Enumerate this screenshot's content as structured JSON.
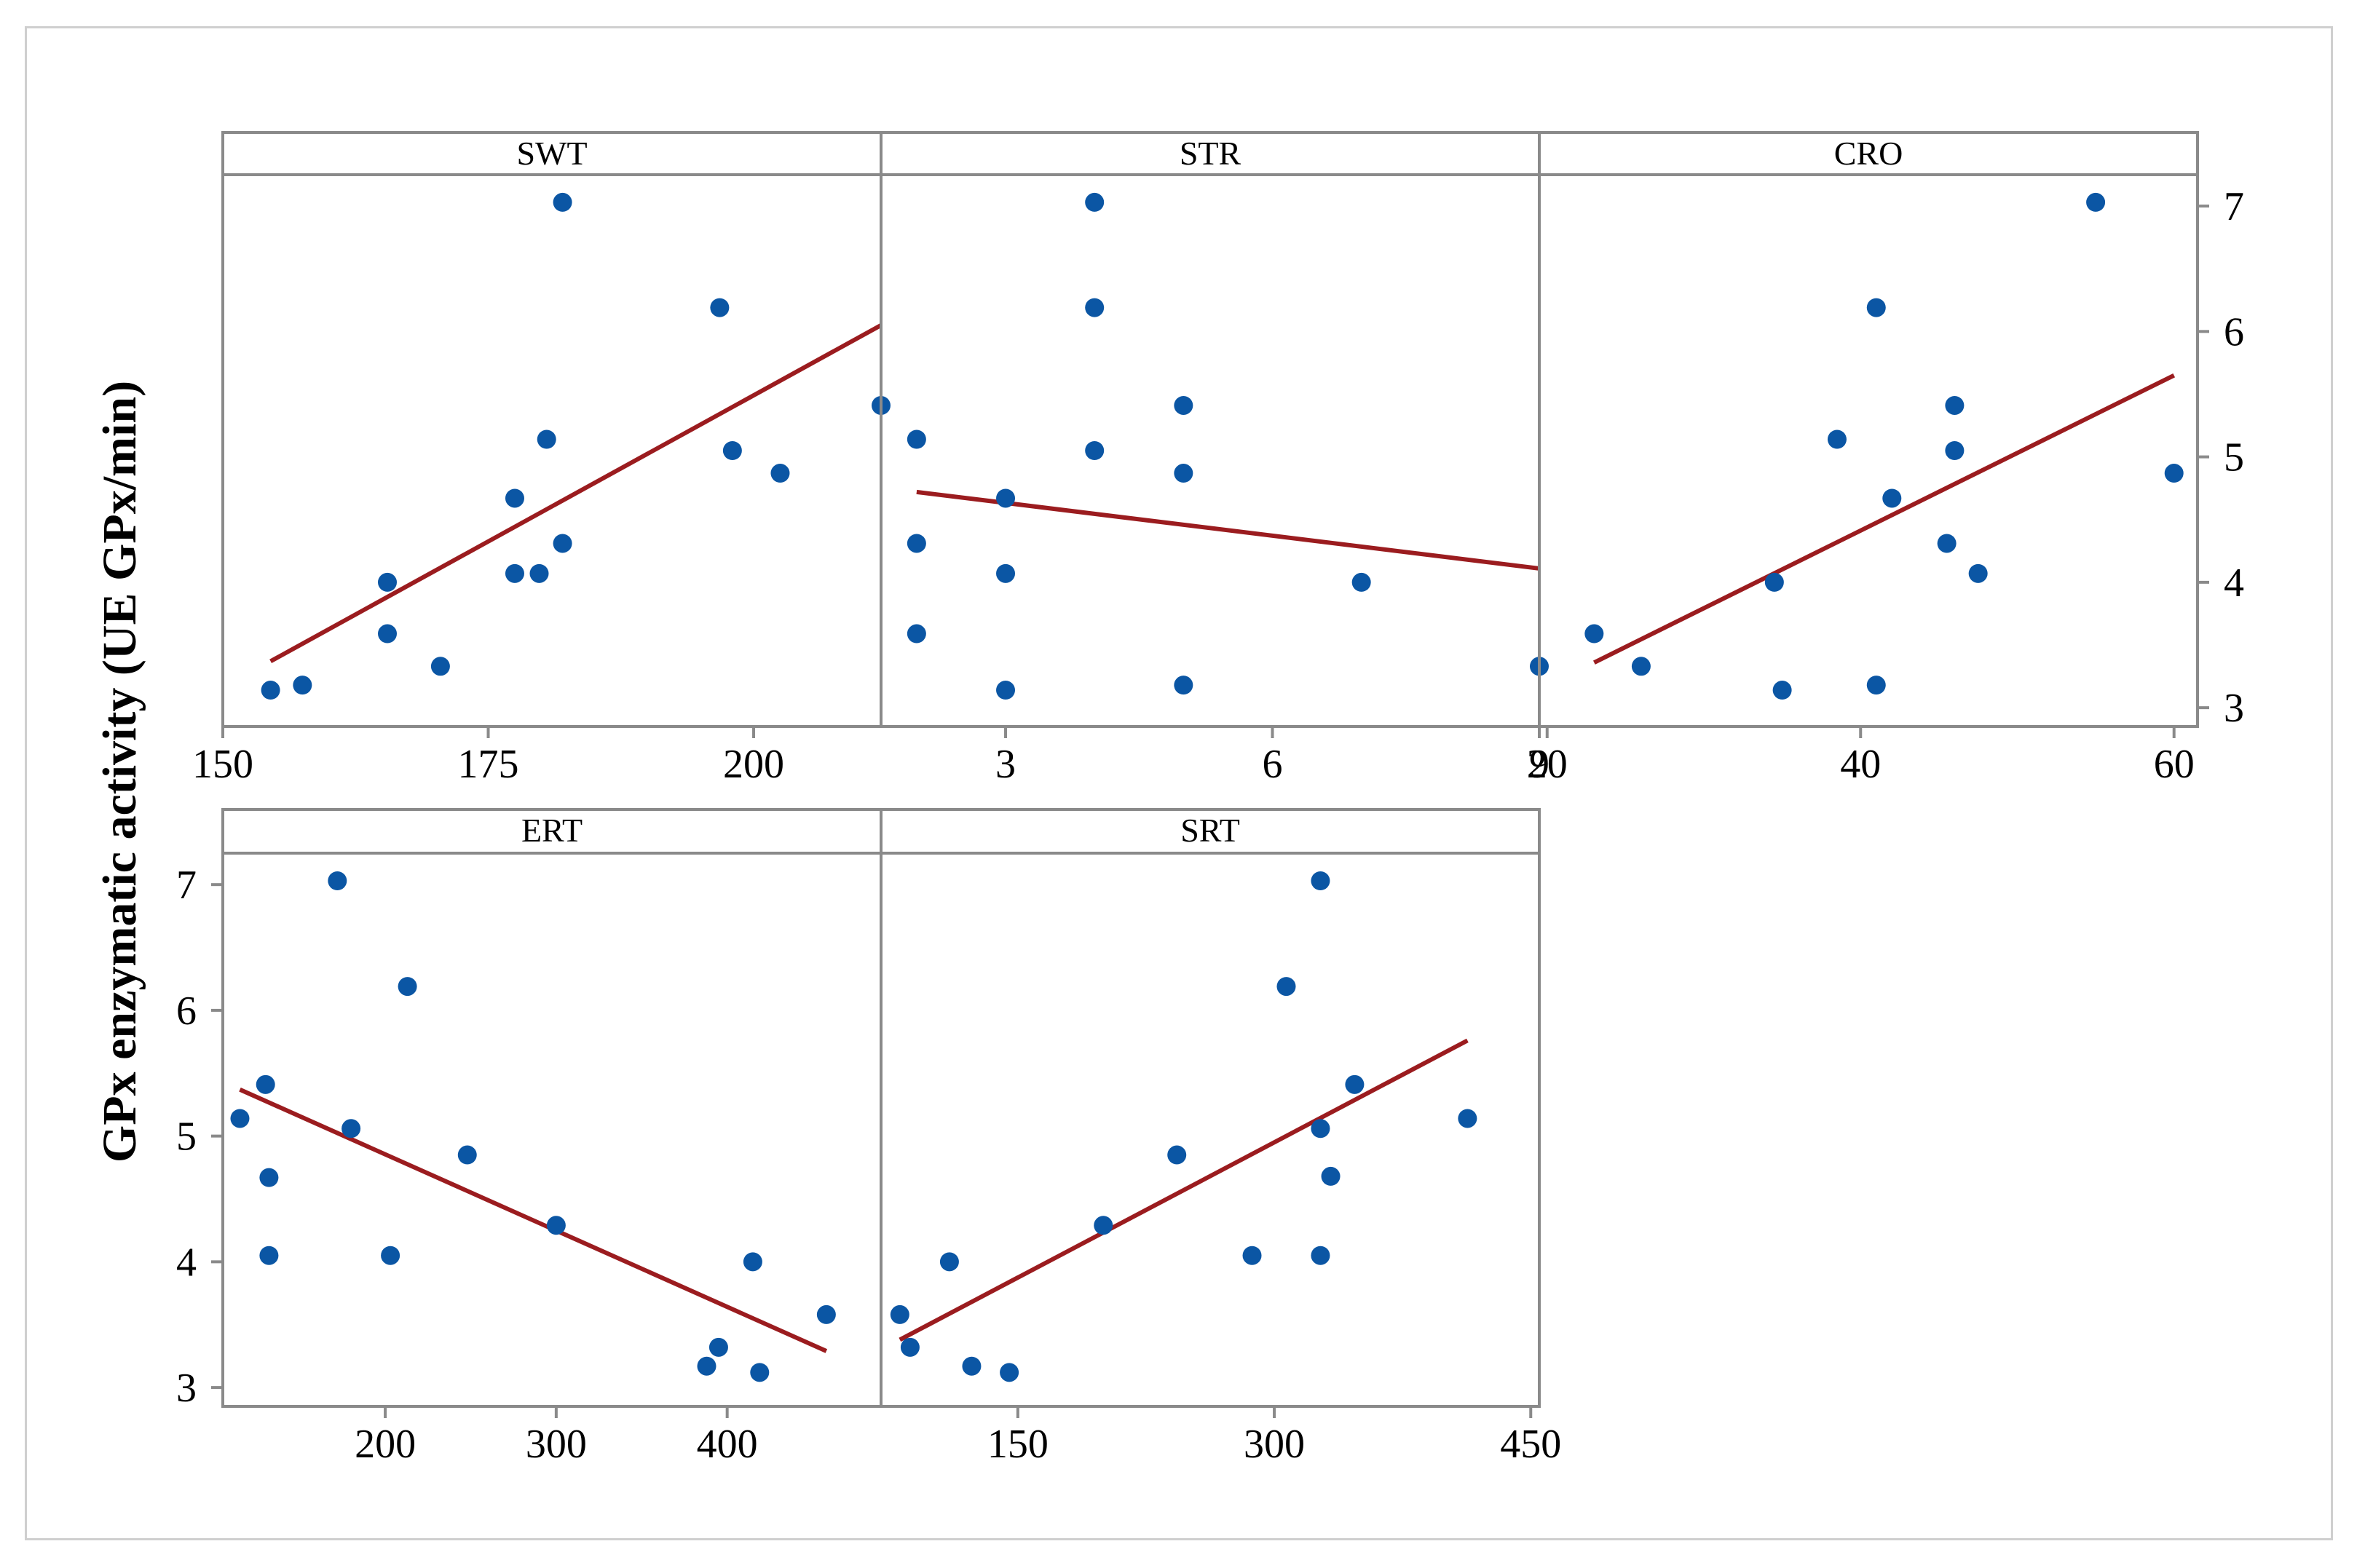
{
  "chart_data": {
    "type": "scatter",
    "ylabel": "GPx enzymatic activity (UE GPx/min)",
    "ylim": [
      2.85,
      7.25
    ],
    "yticks": [
      3,
      4,
      5,
      6,
      7
    ],
    "grid": false,
    "colors": {
      "points": "#0b56a4",
      "fit_line": "#9b1c1f",
      "frame": "#8a8a8a",
      "strip": "#ffffff"
    },
    "panels": [
      {
        "name": "SWT",
        "xlim": [
          150,
          212
        ],
        "xticks": [
          150,
          175,
          200
        ],
        "x": [
          154.5,
          157.5,
          165.5,
          165.5,
          170.5,
          177.5,
          177.5,
          179.8,
          180.5,
          182,
          182,
          196.8,
          198,
          202.5,
          212
        ],
        "y": [
          3.14,
          3.18,
          3.59,
          4.0,
          3.33,
          4.67,
          4.07,
          4.07,
          5.14,
          4.31,
          7.03,
          6.19,
          5.05,
          4.87,
          5.41
        ],
        "fit": {
          "x": [
            154.5,
            212
          ],
          "y": [
            3.37,
            6.05
          ]
        }
      },
      {
        "name": "STR",
        "xlim": [
          1.6,
          9.0
        ],
        "xticks": [
          3,
          6,
          9
        ],
        "x": [
          2.0,
          2.0,
          2.0,
          3.0,
          3.0,
          3.0,
          4.0,
          4.0,
          4.0,
          5.0,
          5.0,
          5.0,
          7.0,
          9.0
        ],
        "y": [
          3.59,
          4.31,
          5.14,
          3.14,
          4.07,
          4.67,
          5.05,
          6.19,
          7.03,
          5.41,
          4.87,
          3.18,
          4.0,
          3.33
        ],
        "fit": {
          "x": [
            2.0,
            9.0
          ],
          "y": [
            4.72,
            4.11
          ]
        }
      },
      {
        "name": "CRO",
        "xlim": [
          19.5,
          61.5
        ],
        "xticks": [
          20,
          40,
          60
        ],
        "x": [
          23,
          26,
          34.5,
          38.5,
          35,
          41,
          41,
          42,
          46,
          46,
          45.5,
          47.5,
          55,
          60
        ],
        "y": [
          3.59,
          3.33,
          4.0,
          5.14,
          3.14,
          6.19,
          3.18,
          4.67,
          5.41,
          5.05,
          4.31,
          4.07,
          7.03,
          4.87
        ],
        "fit": {
          "x": [
            23,
            60
          ],
          "y": [
            3.36,
            5.65
          ]
        }
      },
      {
        "name": "ERT",
        "xlim": [
          105,
          490
        ],
        "xticks": [
          200,
          300,
          400
        ],
        "x": [
          115,
          130,
          132,
          132,
          172,
          180,
          203,
          213,
          248,
          300,
          388,
          395,
          415,
          419,
          458
        ],
        "y": [
          5.14,
          5.41,
          4.67,
          4.05,
          7.03,
          5.06,
          4.05,
          6.19,
          4.85,
          4.29,
          3.17,
          3.32,
          4.0,
          3.12,
          3.58
        ],
        "fit": {
          "x": [
            115,
            458
          ],
          "y": [
            5.37,
            3.29
          ]
        }
      },
      {
        "name": "SRT",
        "xlim": [
          70,
          455
        ],
        "xticks": [
          150,
          300,
          450
        ],
        "x": [
          81,
          87,
          110,
          123,
          145,
          200,
          243,
          287,
          307,
          327,
          327,
          327,
          333,
          347,
          413
        ],
        "y": [
          3.58,
          3.32,
          4.0,
          3.17,
          3.12,
          4.29,
          4.85,
          4.05,
          6.19,
          7.03,
          5.06,
          4.05,
          4.68,
          5.41,
          5.14
        ],
        "fit": {
          "x": [
            81,
            413
          ],
          "y": [
            3.38,
            5.76
          ]
        }
      }
    ]
  }
}
